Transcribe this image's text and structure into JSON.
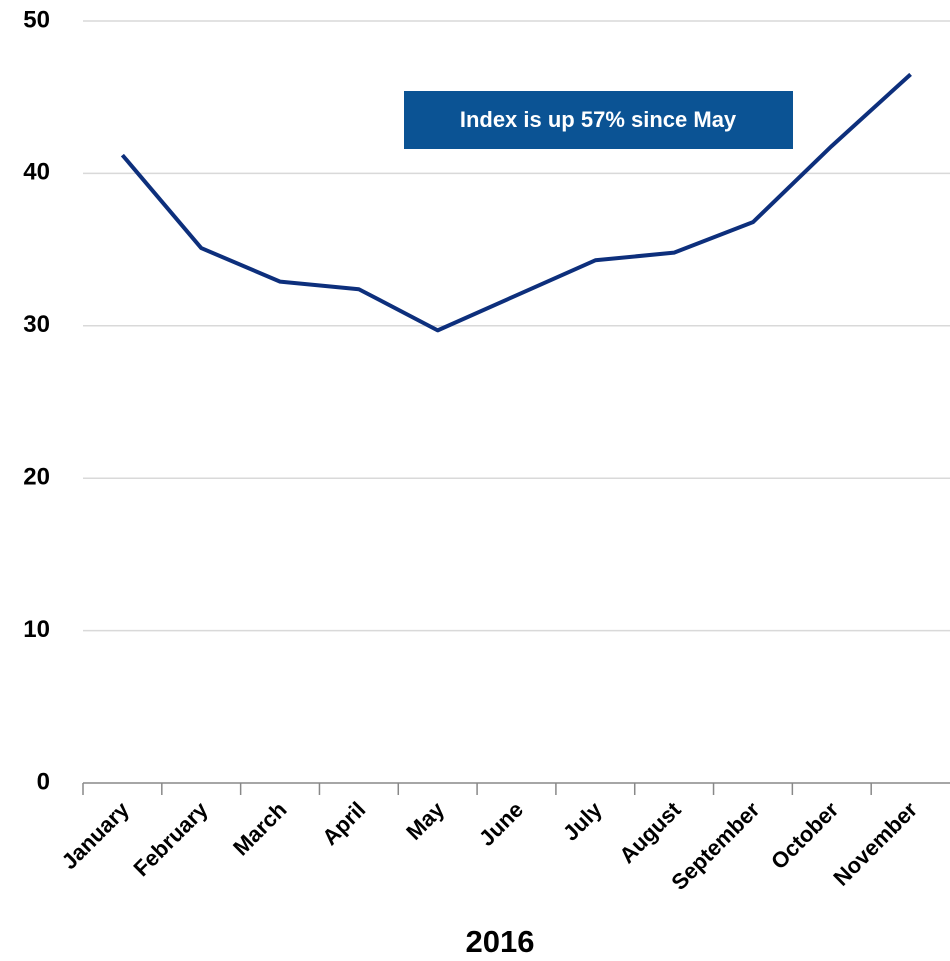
{
  "chart_data": {
    "type": "line",
    "annotation": "Index is up 57% since May",
    "xlabel": "2016",
    "categories": [
      "January",
      "February",
      "March",
      "April",
      "May",
      "June",
      "July",
      "August",
      "September",
      "October",
      "November"
    ],
    "series": [
      {
        "name": "Index",
        "color": "#0d2f7c",
        "values": [
          41.2,
          35.1,
          32.9,
          32.4,
          29.7,
          32.0,
          34.3,
          34.8,
          36.8,
          41.8,
          46.5
        ]
      }
    ],
    "ylim": [
      0,
      50
    ],
    "yticks": [
      0,
      10,
      20,
      30,
      40,
      50
    ],
    "grid": true
  }
}
